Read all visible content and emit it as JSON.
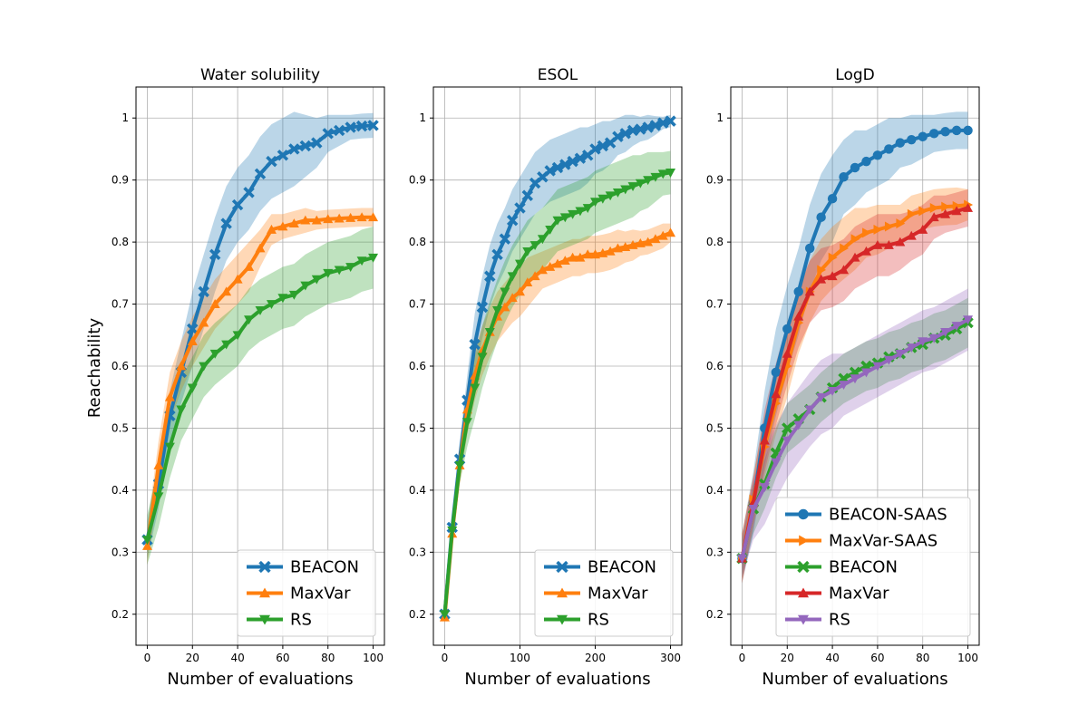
{
  "figure": {
    "ylabel": "Reachability"
  },
  "chart_data": [
    {
      "type": "line",
      "title": "Water solubility",
      "xlabel": "Number of evaluations",
      "ylabel": "Reachability",
      "xlim": [
        -5,
        105
      ],
      "ylim": [
        0.15,
        1.05
      ],
      "xticks": [
        0,
        20,
        40,
        60,
        80,
        100
      ],
      "yticks": [
        0.2,
        0.3,
        0.4,
        0.5,
        0.6,
        0.7,
        0.8,
        0.9,
        1.0
      ],
      "grid": true,
      "legend_position": "lower-right",
      "series": [
        {
          "name": "BEACON",
          "color": "#1f77b4",
          "marker": "x",
          "x": [
            0,
            5,
            10,
            15,
            20,
            25,
            30,
            35,
            40,
            45,
            50,
            55,
            60,
            65,
            70,
            75,
            80,
            85,
            90,
            95,
            100
          ],
          "y": [
            0.32,
            0.41,
            0.52,
            0.59,
            0.66,
            0.72,
            0.78,
            0.83,
            0.86,
            0.88,
            0.91,
            0.93,
            0.94,
            0.95,
            0.955,
            0.96,
            0.975,
            0.98,
            0.985,
            0.987,
            0.988
          ],
          "band": [
            0.03,
            0.04,
            0.04,
            0.05,
            0.06,
            0.06,
            0.06,
            0.06,
            0.06,
            0.06,
            0.06,
            0.06,
            0.06,
            0.06,
            0.05,
            0.04,
            0.03,
            0.025,
            0.02,
            0.02,
            0.02
          ]
        },
        {
          "name": "MaxVar",
          "color": "#ff7f0e",
          "marker": "triangle-up",
          "x": [
            0,
            5,
            10,
            15,
            20,
            25,
            30,
            35,
            40,
            45,
            50,
            55,
            60,
            65,
            70,
            75,
            80,
            85,
            90,
            95,
            100
          ],
          "y": [
            0.31,
            0.44,
            0.55,
            0.6,
            0.64,
            0.67,
            0.7,
            0.72,
            0.74,
            0.76,
            0.79,
            0.82,
            0.825,
            0.83,
            0.835,
            0.835,
            0.837,
            0.838,
            0.839,
            0.84,
            0.84
          ],
          "band": [
            0.03,
            0.04,
            0.04,
            0.04,
            0.04,
            0.04,
            0.04,
            0.04,
            0.04,
            0.04,
            0.03,
            0.025,
            0.02,
            0.02,
            0.02,
            0.015,
            0.015,
            0.015,
            0.015,
            0.015,
            0.015
          ]
        },
        {
          "name": "RS",
          "color": "#2ca02c",
          "marker": "triangle-down",
          "x": [
            0,
            5,
            10,
            15,
            20,
            25,
            30,
            35,
            40,
            45,
            50,
            55,
            60,
            65,
            70,
            75,
            80,
            85,
            90,
            95,
            100
          ],
          "y": [
            0.32,
            0.39,
            0.47,
            0.53,
            0.565,
            0.6,
            0.62,
            0.635,
            0.65,
            0.675,
            0.69,
            0.7,
            0.71,
            0.715,
            0.73,
            0.74,
            0.75,
            0.755,
            0.76,
            0.77,
            0.775
          ],
          "band": [
            0.04,
            0.05,
            0.05,
            0.05,
            0.05,
            0.05,
            0.05,
            0.05,
            0.05,
            0.05,
            0.05,
            0.05,
            0.05,
            0.05,
            0.05,
            0.05,
            0.05,
            0.05,
            0.05,
            0.05,
            0.05
          ]
        }
      ]
    },
    {
      "type": "line",
      "title": "ESOL",
      "xlabel": "Number of evaluations",
      "ylabel": "",
      "xlim": [
        -15,
        315
      ],
      "ylim": [
        0.15,
        1.05
      ],
      "xticks": [
        0,
        100,
        200,
        300
      ],
      "yticks": [
        0.2,
        0.3,
        0.4,
        0.5,
        0.6,
        0.7,
        0.8,
        0.9,
        1.0
      ],
      "grid": true,
      "legend_position": "lower-right",
      "series": [
        {
          "name": "BEACON",
          "color": "#1f77b4",
          "marker": "x",
          "x": [
            0,
            10,
            20,
            30,
            40,
            50,
            60,
            70,
            80,
            90,
            100,
            110,
            120,
            130,
            140,
            150,
            160,
            170,
            180,
            190,
            200,
            210,
            220,
            230,
            240,
            250,
            260,
            270,
            280,
            290,
            300
          ],
          "y": [
            0.2,
            0.34,
            0.45,
            0.545,
            0.635,
            0.695,
            0.745,
            0.78,
            0.805,
            0.835,
            0.855,
            0.875,
            0.895,
            0.905,
            0.915,
            0.92,
            0.925,
            0.93,
            0.935,
            0.94,
            0.95,
            0.955,
            0.96,
            0.97,
            0.975,
            0.98,
            0.982,
            0.985,
            0.988,
            0.992,
            0.995
          ],
          "band": [
            0.01,
            0.02,
            0.03,
            0.04,
            0.05,
            0.05,
            0.05,
            0.05,
            0.05,
            0.05,
            0.05,
            0.05,
            0.05,
            0.05,
            0.05,
            0.05,
            0.05,
            0.05,
            0.05,
            0.045,
            0.04,
            0.04,
            0.035,
            0.03,
            0.03,
            0.025,
            0.02,
            0.02,
            0.015,
            0.01,
            0.01
          ]
        },
        {
          "name": "MaxVar",
          "color": "#ff7f0e",
          "marker": "triangle-up",
          "x": [
            0,
            10,
            20,
            30,
            40,
            50,
            60,
            70,
            80,
            90,
            100,
            110,
            120,
            130,
            140,
            150,
            160,
            170,
            180,
            190,
            200,
            210,
            220,
            230,
            240,
            250,
            260,
            270,
            280,
            290,
            300
          ],
          "y": [
            0.195,
            0.33,
            0.44,
            0.53,
            0.585,
            0.625,
            0.655,
            0.68,
            0.695,
            0.71,
            0.72,
            0.735,
            0.745,
            0.755,
            0.76,
            0.765,
            0.77,
            0.775,
            0.775,
            0.78,
            0.78,
            0.782,
            0.785,
            0.79,
            0.792,
            0.795,
            0.798,
            0.8,
            0.805,
            0.81,
            0.815
          ],
          "band": [
            0.01,
            0.02,
            0.03,
            0.04,
            0.04,
            0.04,
            0.04,
            0.04,
            0.04,
            0.04,
            0.04,
            0.04,
            0.035,
            0.03,
            0.03,
            0.03,
            0.03,
            0.03,
            0.03,
            0.03,
            0.03,
            0.03,
            0.03,
            0.03,
            0.025,
            0.025,
            0.02,
            0.02,
            0.02,
            0.02,
            0.015
          ]
        },
        {
          "name": "RS",
          "color": "#2ca02c",
          "marker": "triangle-down",
          "x": [
            0,
            10,
            20,
            30,
            40,
            50,
            60,
            70,
            80,
            90,
            100,
            110,
            120,
            130,
            140,
            150,
            160,
            170,
            180,
            190,
            200,
            210,
            220,
            230,
            240,
            250,
            260,
            270,
            280,
            290,
            300
          ],
          "y": [
            0.2,
            0.335,
            0.44,
            0.51,
            0.565,
            0.615,
            0.655,
            0.69,
            0.72,
            0.745,
            0.765,
            0.785,
            0.795,
            0.805,
            0.82,
            0.835,
            0.84,
            0.845,
            0.85,
            0.855,
            0.865,
            0.87,
            0.875,
            0.88,
            0.885,
            0.89,
            0.895,
            0.9,
            0.905,
            0.91,
            0.912
          ],
          "band": [
            0.01,
            0.02,
            0.03,
            0.04,
            0.05,
            0.05,
            0.05,
            0.05,
            0.05,
            0.05,
            0.05,
            0.05,
            0.05,
            0.05,
            0.05,
            0.05,
            0.05,
            0.05,
            0.05,
            0.05,
            0.05,
            0.05,
            0.05,
            0.05,
            0.05,
            0.05,
            0.045,
            0.045,
            0.04,
            0.035,
            0.035
          ]
        }
      ]
    },
    {
      "type": "line",
      "title": "LogD",
      "xlabel": "Number of evaluations",
      "ylabel": "",
      "xlim": [
        -5,
        105
      ],
      "ylim": [
        0.15,
        1.05
      ],
      "xticks": [
        0,
        20,
        40,
        60,
        80,
        100
      ],
      "yticks": [
        0.2,
        0.3,
        0.4,
        0.5,
        0.6,
        0.7,
        0.8,
        0.9,
        1.0
      ],
      "grid": true,
      "legend_position": "lower-right",
      "series": [
        {
          "name": "BEACON-SAAS",
          "color": "#1f77b4",
          "marker": "circle",
          "x": [
            0,
            5,
            10,
            15,
            20,
            25,
            30,
            35,
            40,
            45,
            50,
            55,
            60,
            65,
            70,
            75,
            80,
            85,
            90,
            95,
            100
          ],
          "y": [
            0.29,
            0.38,
            0.5,
            0.59,
            0.66,
            0.72,
            0.79,
            0.84,
            0.87,
            0.905,
            0.92,
            0.93,
            0.94,
            0.95,
            0.96,
            0.965,
            0.97,
            0.975,
            0.978,
            0.98,
            0.98
          ],
          "band": [
            0.04,
            0.05,
            0.06,
            0.07,
            0.07,
            0.07,
            0.07,
            0.07,
            0.07,
            0.06,
            0.06,
            0.05,
            0.05,
            0.05,
            0.04,
            0.04,
            0.035,
            0.03,
            0.03,
            0.03,
            0.03
          ]
        },
        {
          "name": "MaxVar-SAAS",
          "color": "#ff7f0e",
          "marker": "triangle-right",
          "x": [
            0,
            5,
            10,
            15,
            20,
            25,
            30,
            35,
            40,
            45,
            50,
            55,
            60,
            65,
            70,
            75,
            80,
            85,
            90,
            95,
            100
          ],
          "y": [
            0.29,
            0.385,
            0.47,
            0.54,
            0.6,
            0.67,
            0.72,
            0.755,
            0.775,
            0.79,
            0.805,
            0.815,
            0.82,
            0.825,
            0.83,
            0.845,
            0.85,
            0.855,
            0.857,
            0.858,
            0.86
          ],
          "band": [
            0.04,
            0.04,
            0.05,
            0.05,
            0.05,
            0.05,
            0.05,
            0.05,
            0.05,
            0.05,
            0.05,
            0.04,
            0.04,
            0.035,
            0.03,
            0.03,
            0.03,
            0.03,
            0.03,
            0.03,
            0.025
          ]
        },
        {
          "name": "BEACON",
          "color": "#2ca02c",
          "marker": "x",
          "x": [
            0,
            5,
            10,
            15,
            20,
            25,
            30,
            35,
            40,
            45,
            50,
            55,
            60,
            65,
            70,
            75,
            80,
            85,
            90,
            95,
            100
          ],
          "y": [
            0.29,
            0.37,
            0.41,
            0.46,
            0.5,
            0.515,
            0.53,
            0.55,
            0.565,
            0.58,
            0.59,
            0.6,
            0.605,
            0.615,
            0.62,
            0.63,
            0.635,
            0.645,
            0.65,
            0.66,
            0.67
          ],
          "band": [
            0.03,
            0.04,
            0.04,
            0.04,
            0.04,
            0.04,
            0.04,
            0.04,
            0.04,
            0.04,
            0.04,
            0.04,
            0.04,
            0.04,
            0.04,
            0.04,
            0.04,
            0.04,
            0.04,
            0.04,
            0.04
          ]
        },
        {
          "name": "MaxVar",
          "color": "#d62728",
          "marker": "triangle-up",
          "x": [
            0,
            5,
            10,
            15,
            20,
            25,
            30,
            35,
            40,
            45,
            50,
            55,
            60,
            65,
            70,
            75,
            80,
            85,
            90,
            95,
            100
          ],
          "y": [
            0.29,
            0.38,
            0.48,
            0.555,
            0.62,
            0.68,
            0.72,
            0.74,
            0.745,
            0.755,
            0.775,
            0.785,
            0.795,
            0.795,
            0.8,
            0.81,
            0.82,
            0.84,
            0.845,
            0.85,
            0.855
          ],
          "band": [
            0.04,
            0.04,
            0.05,
            0.05,
            0.05,
            0.05,
            0.05,
            0.05,
            0.05,
            0.05,
            0.05,
            0.05,
            0.05,
            0.05,
            0.045,
            0.04,
            0.04,
            0.035,
            0.03,
            0.03,
            0.03
          ]
        },
        {
          "name": "RS",
          "color": "#9467bd",
          "marker": "triangle-down",
          "x": [
            0,
            5,
            10,
            15,
            20,
            25,
            30,
            35,
            40,
            45,
            50,
            55,
            60,
            65,
            70,
            75,
            80,
            85,
            90,
            95,
            100
          ],
          "y": [
            0.29,
            0.37,
            0.405,
            0.445,
            0.48,
            0.505,
            0.53,
            0.55,
            0.56,
            0.57,
            0.58,
            0.59,
            0.6,
            0.61,
            0.62,
            0.63,
            0.64,
            0.645,
            0.655,
            0.665,
            0.675
          ],
          "band": [
            0.03,
            0.05,
            0.06,
            0.06,
            0.06,
            0.06,
            0.06,
            0.06,
            0.06,
            0.05,
            0.05,
            0.05,
            0.05,
            0.05,
            0.05,
            0.05,
            0.05,
            0.05,
            0.05,
            0.05,
            0.05
          ]
        }
      ]
    }
  ]
}
